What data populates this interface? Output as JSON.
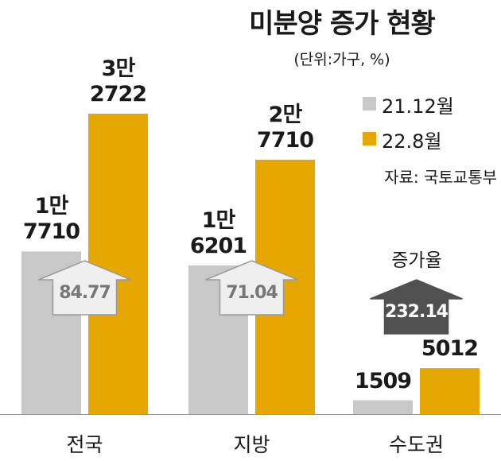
{
  "chart_data": {
    "type": "bar",
    "title": "미분양 증가 현황",
    "subtitle": "(단위:가구, %)",
    "source": "자료: 국토교통부",
    "categories": [
      "전국",
      "지방",
      "수도권"
    ],
    "series": [
      {
        "name": "21.12월",
        "color": "#c8c8c8",
        "values": [
          17710,
          16201,
          1509
        ],
        "value_labels": [
          "1만\n7710",
          "1만\n6201",
          "1509"
        ]
      },
      {
        "name": "22.8월",
        "color": "#e6a800",
        "values": [
          32722,
          27710,
          5012
        ],
        "value_labels": [
          "3만\n2722",
          "2만\n7710",
          "5012"
        ]
      }
    ],
    "growth_label": "증가율",
    "growth_rates": [
      84.77,
      71.04,
      232.14
    ]
  }
}
